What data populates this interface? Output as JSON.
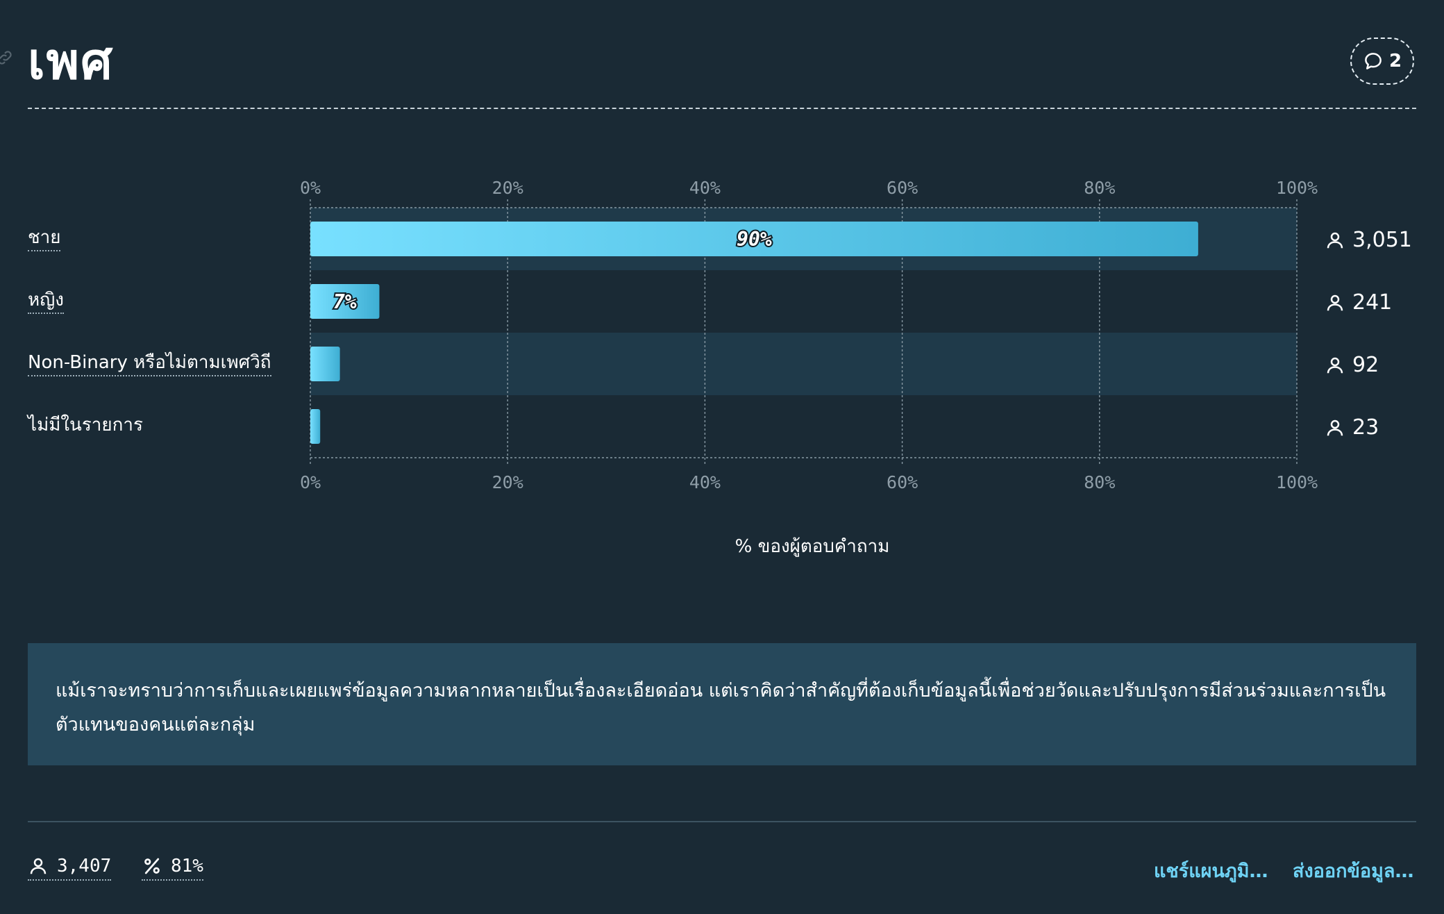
{
  "header": {
    "title": "เพศ",
    "comments_count": "2"
  },
  "colors": {
    "background": "#1a2a35",
    "bar_start": "#78e0ff",
    "bar_end": "#3eaed3",
    "row_band": "#1f3a4a",
    "note_background": "#26485b",
    "link": "#6fd3f5"
  },
  "chart_data": {
    "type": "bar",
    "orientation": "horizontal",
    "categories": [
      "ชาย",
      "หญิง",
      "Non-Binary หรือไม่ตามเพศวิถี",
      "ไม่มีในรายการ"
    ],
    "values": [
      90,
      7,
      3,
      1
    ],
    "value_labels": [
      "90%",
      "7%",
      "",
      ""
    ],
    "counts": [
      "3,051",
      "241",
      "92",
      "23"
    ],
    "xlabel": "% ของผู้ตอบคำถาม",
    "xlim": [
      0,
      100
    ],
    "ticks": [
      "0%",
      "20%",
      "40%",
      "60%",
      "80%",
      "100%"
    ],
    "grid": true
  },
  "note": "แม้เราจะทราบว่าการเก็บและเผยแพร่ข้อมูลความหลากหลายเป็นเรื่องละเอียดอ่อน แต่เราคิดว่าสำคัญที่ต้องเก็บข้อมูลนี้เพื่อช่วยวัดและปรับปรุงการมีส่วนร่วมและการเป็นตัวแทนของคนแต่ละกลุ่ม",
  "footer": {
    "respondents": "3,407",
    "percent": "81%",
    "share_label": "แชร์แผนภูมิ…",
    "export_label": "ส่งออกข้อมูล…"
  }
}
